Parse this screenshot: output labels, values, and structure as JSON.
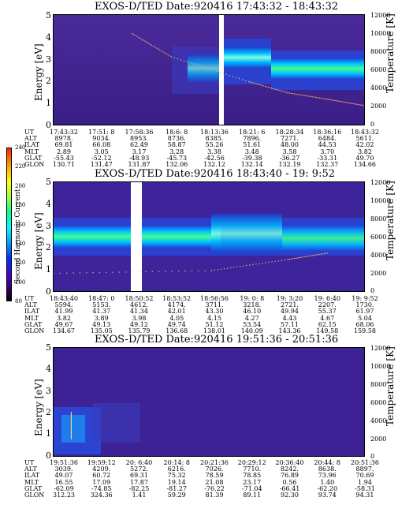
{
  "colorbar": {
    "label": "Second Harmonic Current",
    "ticks": [
      "240",
      "220",
      "200",
      "180",
      "160",
      "140",
      "120",
      "100",
      "80"
    ]
  },
  "panels": [
    {
      "title": "EXOS-D/TED   Date:920416   17:43:32 - 18:43:32",
      "ylabel": "Energy [eV]",
      "y2label": "Temperature [K]",
      "yticks": [
        "5",
        "4",
        "3",
        "2",
        "1",
        "0"
      ],
      "y2ticks": [
        "12000",
        "10000",
        "8000",
        "6000",
        "4000",
        "2000",
        "0"
      ],
      "table_labels": [
        "UT",
        "ALT",
        "ILAT",
        "MLT",
        "GLAT",
        "GLON"
      ],
      "columns": [
        [
          "17:43:32",
          "8978.",
          "69.81",
          "2.89",
          "-55.43",
          "130.71"
        ],
        [
          "17:51: 8",
          "9034.",
          "66.08",
          "3.05",
          "-52.12",
          "131.47"
        ],
        [
          "17:58:36",
          "8953.",
          "62.49",
          "3.17",
          "-48.93",
          "131.87"
        ],
        [
          "18:6: 8",
          "8736.",
          "58.87",
          "3.28",
          "-45.73",
          "132.06"
        ],
        [
          "18:13:36",
          "8385.",
          "55.26",
          "3.38",
          "-42.56",
          "132.12"
        ],
        [
          "18:21: 6",
          "7896.",
          "51.61",
          "3.48",
          "-39.38",
          "132.14"
        ],
        [
          "18:28:34",
          "7271.",
          "48.00",
          "3.58",
          "-36.27",
          "132.19"
        ],
        [
          "18:36:16",
          "6484.",
          "44.53",
          "3.70",
          "-33.31",
          "132.37"
        ],
        [
          "18:43:32",
          "5611.",
          "42.02",
          "3.82",
          "49.70",
          "134.66"
        ]
      ]
    },
    {
      "title": "EXOS-D/TED   Date:920416   18:43:40 - 19: 9:52",
      "ylabel": "Energy [eV]",
      "y2label": "Temperature [K]",
      "yticks": [
        "5",
        "4",
        "3",
        "2",
        "1",
        "0"
      ],
      "y2ticks": [
        "12000",
        "10000",
        "8000",
        "6000",
        "4000",
        "2000",
        "0"
      ],
      "table_labels": [
        "UT",
        "ALT",
        "ILAT",
        "MLT",
        "GLAT",
        "GLON"
      ],
      "columns": [
        [
          "18:43:40",
          "5594.",
          "41.99",
          "3.82",
          "49.67",
          "134.67"
        ],
        [
          "18:47: 0",
          "5153.",
          "41.37",
          "3.89",
          "49.13",
          "135.05"
        ],
        [
          "18:50:52",
          "4612.",
          "41.34",
          "3.98",
          "49.12",
          "135.79"
        ],
        [
          "18:53:52",
          "4174.",
          "42.01",
          "4.05",
          "49.74",
          "136.68"
        ],
        [
          "18:56:56",
          "3711.",
          "43.30",
          "4.15",
          "51.12",
          "138.01"
        ],
        [
          "19: 0: 8",
          "3218.",
          "46.10",
          "4.27",
          "53.54",
          "140.09"
        ],
        [
          "19: 3:20",
          "2721.",
          "49.94",
          "4.43",
          "57.11",
          "143.36"
        ],
        [
          "19: 6:40",
          "2207.",
          "55.37",
          "4.67",
          "62.15",
          "149.58"
        ],
        [
          "19: 9:52",
          "1730.",
          "61.97",
          "5.04",
          "68.06",
          "159.58"
        ]
      ]
    },
    {
      "title": "EXOS-D/TED   Date:920416   19:51:36 - 20:51:36",
      "ylabel": "Energy [eV]",
      "y2label": "Temperature [K]",
      "yticks": [
        "5",
        "4",
        "3",
        "2",
        "1",
        "0"
      ],
      "y2ticks": [
        "12000",
        "10000",
        "8000",
        "6000",
        "4000",
        "2000",
        "0"
      ],
      "table_labels": [
        "UT",
        "ALT",
        "ILAT",
        "MLT",
        "GLAT",
        "GLON"
      ],
      "columns": [
        [
          "19:51:36",
          "3039.",
          "49.07",
          "16.55",
          "-62.09",
          "312.23"
        ],
        [
          "19:59:12",
          "4209.",
          "60.72",
          "17.09",
          "-74.85",
          "324.36"
        ],
        [
          "20: 6:40",
          "5272.",
          "69.31",
          "17.87",
          "-82.25",
          "1.41"
        ],
        [
          "20:14: 8",
          "6216.",
          "75.32",
          "19.14",
          "-81.27",
          "59.29"
        ],
        [
          "20:21:36",
          "7026.",
          "78.59",
          "21.08",
          "-76.22",
          "81.39"
        ],
        [
          "20:29:12",
          "7710.",
          "78.85",
          "23.17",
          "-71.04",
          "89.11"
        ],
        [
          "20:36:40",
          "8242.",
          "76.89",
          "0.56",
          "-66.41",
          "92.30"
        ],
        [
          "20:44: 8",
          "8638.",
          "73.96",
          "1.40",
          "-62.20",
          "93.74"
        ],
        [
          "20:51:36",
          "8897.",
          "70.69",
          "1.94",
          "-58.31",
          "94.31"
        ]
      ]
    }
  ],
  "chart_data": [
    {
      "type": "heatmap",
      "title": "EXOS-D/TED   Date:920416   17:43:32 - 18:43:32",
      "ylabel": "Energy [eV]",
      "y2label": "Temperature [K]",
      "ylim": [
        0,
        5
      ],
      "y2lim": [
        0,
        12000
      ],
      "colorbar_label": "Second Harmonic Current",
      "colorbar_range": [
        80,
        240
      ],
      "data_gap_x": [
        "18:13:36"
      ],
      "bands": [
        {
          "x_from": "18:06:08",
          "x_to": "18:21:06",
          "energy_center": 2.9,
          "level": "green"
        },
        {
          "x_from": "18:21:06",
          "x_to": "18:28:34",
          "energy_center": 2.8,
          "level": "cyan"
        },
        {
          "x_from": "18:28:34",
          "x_to": "18:43:32",
          "energy_center": 2.4,
          "level": "cyan"
        }
      ],
      "temperature_points": [
        {
          "x": "17:58:36",
          "y": 10000
        },
        {
          "x": "18:06:08",
          "y": 7500
        },
        {
          "x": "18:21:06",
          "y": 4800
        },
        {
          "x": "18:28:34",
          "y": 3600
        },
        {
          "x": "18:36:16",
          "y": 2900
        },
        {
          "x": "18:43:32",
          "y": 2200
        }
      ]
    },
    {
      "type": "heatmap",
      "title": "EXOS-D/TED   Date:920416   18:43:40 - 19: 9:52",
      "ylabel": "Energy [eV]",
      "y2label": "Temperature [K]",
      "ylim": [
        0,
        5
      ],
      "y2lim": [
        0,
        12000
      ],
      "colorbar_label": "Second Harmonic Current",
      "colorbar_range": [
        80,
        240
      ],
      "data_gap_x": [
        "18:50:52"
      ],
      "bands": [
        {
          "x_from": "18:43:40",
          "x_to": "18:50:52",
          "energy_center": 2.5,
          "level": "green"
        },
        {
          "x_from": "18:53:52",
          "x_to": "19:09:52",
          "energy_center": 2.5,
          "level": "green"
        }
      ],
      "temperature_points": [
        {
          "x": "18:43:40",
          "y": 2100
        },
        {
          "x": "18:56:56",
          "y": 2400
        },
        {
          "x": "19:03:20",
          "y": 3600
        },
        {
          "x": "19:06:40",
          "y": 4300
        }
      ]
    },
    {
      "type": "heatmap",
      "title": "EXOS-D/TED   Date:920416   19:51:36 - 20:51:36",
      "ylabel": "Energy [eV]",
      "y2label": "Temperature [K]",
      "ylim": [
        0,
        5
      ],
      "y2lim": [
        0,
        12000
      ],
      "colorbar_label": "Second Harmonic Current",
      "colorbar_range": [
        80,
        240
      ],
      "bands": [
        {
          "x_from": "19:51:36",
          "x_to": "19:59:12",
          "energy_center": 1.8,
          "level": "blue"
        }
      ],
      "temperature_points": [
        {
          "x": "19:55:00",
          "y": 2000
        },
        {
          "x": "19:55:00",
          "y": 5000
        }
      ]
    }
  ]
}
